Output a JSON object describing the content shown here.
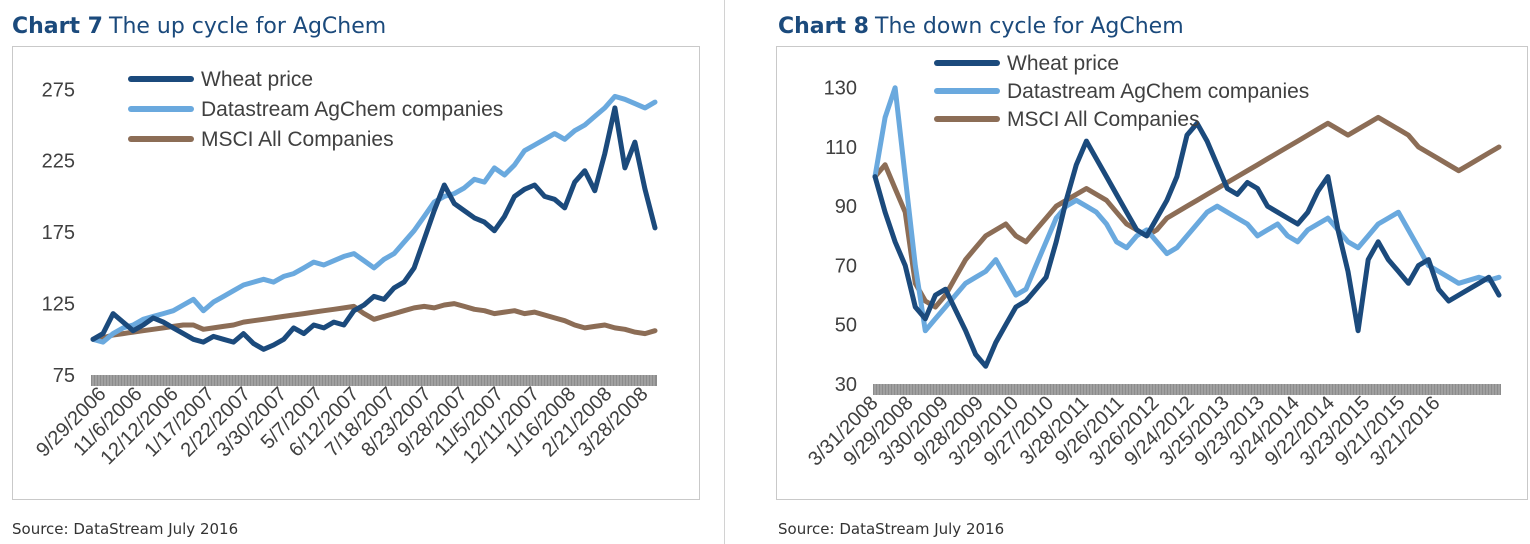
{
  "chart_data": [
    {
      "type": "line",
      "chart_label": "Chart 7",
      "title": "The up cycle for AgChem",
      "source": "Source: DataStream July 2016",
      "xlabel": "",
      "ylabel": "",
      "ylim": [
        75,
        285
      ],
      "yticks": [
        75,
        125,
        175,
        225,
        275
      ],
      "xtick_labels": [
        "9/29/2006",
        "11/6/2006",
        "12/12/2006",
        "1/17/2007",
        "2/22/2007",
        "3/30/2007",
        "5/7/2007",
        "6/12/2007",
        "7/18/2007",
        "8/23/2007",
        "9/28/2007",
        "11/5/2007",
        "12/11/2007",
        "1/16/2008",
        "2/21/2008",
        "3/28/2008"
      ],
      "grid": false,
      "legend_position": "top-left",
      "series": [
        {
          "name": "Wheat price",
          "color": "#1b4a7c",
          "values": [
            100,
            104,
            118,
            112,
            106,
            110,
            115,
            112,
            108,
            104,
            100,
            98,
            102,
            100,
            98,
            104,
            97,
            93,
            96,
            100,
            108,
            104,
            110,
            108,
            112,
            110,
            120,
            124,
            130,
            128,
            136,
            140,
            150,
            170,
            190,
            208,
            195,
            190,
            185,
            182,
            176,
            186,
            200,
            205,
            208,
            200,
            198,
            192,
            210,
            218,
            204,
            230,
            262,
            220,
            238,
            205,
            178
          ]
        },
        {
          "name": "Datastream AgChem companies",
          "color": "#6aa9de",
          "values": [
            100,
            98,
            104,
            108,
            110,
            114,
            116,
            118,
            120,
            124,
            128,
            120,
            126,
            130,
            134,
            138,
            140,
            142,
            140,
            144,
            146,
            150,
            154,
            152,
            155,
            158,
            160,
            155,
            150,
            156,
            160,
            168,
            176,
            186,
            196,
            200,
            202,
            206,
            212,
            210,
            220,
            215,
            222,
            232,
            236,
            240,
            244,
            240,
            246,
            250,
            256,
            262,
            270,
            268,
            265,
            262,
            266
          ]
        },
        {
          "name": "MSCI All Companies",
          "color": "#8c6d56",
          "values": [
            100,
            101,
            103,
            104,
            105,
            106,
            107,
            108,
            109,
            110,
            110,
            107,
            108,
            109,
            110,
            112,
            113,
            114,
            115,
            116,
            117,
            118,
            119,
            120,
            121,
            122,
            123,
            118,
            114,
            116,
            118,
            120,
            122,
            123,
            122,
            124,
            125,
            123,
            121,
            120,
            118,
            119,
            120,
            118,
            119,
            117,
            115,
            113,
            110,
            108,
            109,
            110,
            108,
            107,
            105,
            104,
            106
          ]
        }
      ]
    },
    {
      "type": "line",
      "chart_label": "Chart 8",
      "title": "The down cycle for AgChem",
      "source": "Source: DataStream July 2016",
      "xlabel": "",
      "ylabel": "",
      "ylim": [
        30,
        137
      ],
      "yticks": [
        30,
        50,
        70,
        90,
        110,
        130
      ],
      "xtick_labels": [
        "3/31/2008",
        "9/29/2008",
        "3/30/2009",
        "9/28/2009",
        "3/29/2010",
        "9/27/2010",
        "3/28/2011",
        "9/26/2011",
        "3/26/2012",
        "9/24/2012",
        "3/25/2013",
        "9/23/2013",
        "3/24/2014",
        "9/22/2014",
        "3/23/2015",
        "9/21/2015",
        "3/21/2016"
      ],
      "grid": false,
      "legend_position": "top-left",
      "series": [
        {
          "name": "Wheat price",
          "color": "#1b4a7c",
          "values": [
            100,
            88,
            78,
            70,
            56,
            52,
            60,
            62,
            55,
            48,
            40,
            36,
            44,
            50,
            56,
            58,
            62,
            66,
            78,
            92,
            104,
            112,
            106,
            100,
            94,
            88,
            82,
            80,
            86,
            92,
            100,
            114,
            118,
            112,
            104,
            96,
            94,
            98,
            96,
            90,
            88,
            86,
            84,
            88,
            95,
            100,
            82,
            68,
            48,
            72,
            78,
            72,
            68,
            64,
            70,
            72,
            62,
            58,
            60,
            62,
            64,
            66,
            60
          ]
        },
        {
          "name": "Datastream AgChem companies",
          "color": "#6aa9de",
          "values": [
            100,
            120,
            130,
            100,
            70,
            48,
            52,
            56,
            60,
            64,
            66,
            68,
            72,
            66,
            60,
            62,
            70,
            78,
            86,
            90,
            92,
            90,
            88,
            84,
            78,
            76,
            80,
            82,
            78,
            74,
            76,
            80,
            84,
            88,
            90,
            88,
            86,
            84,
            80,
            82,
            84,
            80,
            78,
            82,
            84,
            86,
            82,
            78,
            76,
            80,
            84,
            86,
            88,
            82,
            76,
            70,
            68,
            66,
            64,
            65,
            66,
            65,
            66
          ]
        },
        {
          "name": "MSCI All Companies",
          "color": "#8c6d56",
          "values": [
            100,
            104,
            96,
            88,
            64,
            58,
            56,
            60,
            66,
            72,
            76,
            80,
            82,
            84,
            80,
            78,
            82,
            86,
            90,
            92,
            94,
            96,
            94,
            92,
            88,
            84,
            82,
            80,
            82,
            86,
            88,
            90,
            92,
            94,
            96,
            98,
            100,
            102,
            104,
            106,
            108,
            110,
            112,
            114,
            116,
            118,
            116,
            114,
            116,
            118,
            120,
            118,
            116,
            114,
            110,
            108,
            106,
            104,
            102,
            104,
            106,
            108,
            110
          ]
        }
      ]
    }
  ]
}
